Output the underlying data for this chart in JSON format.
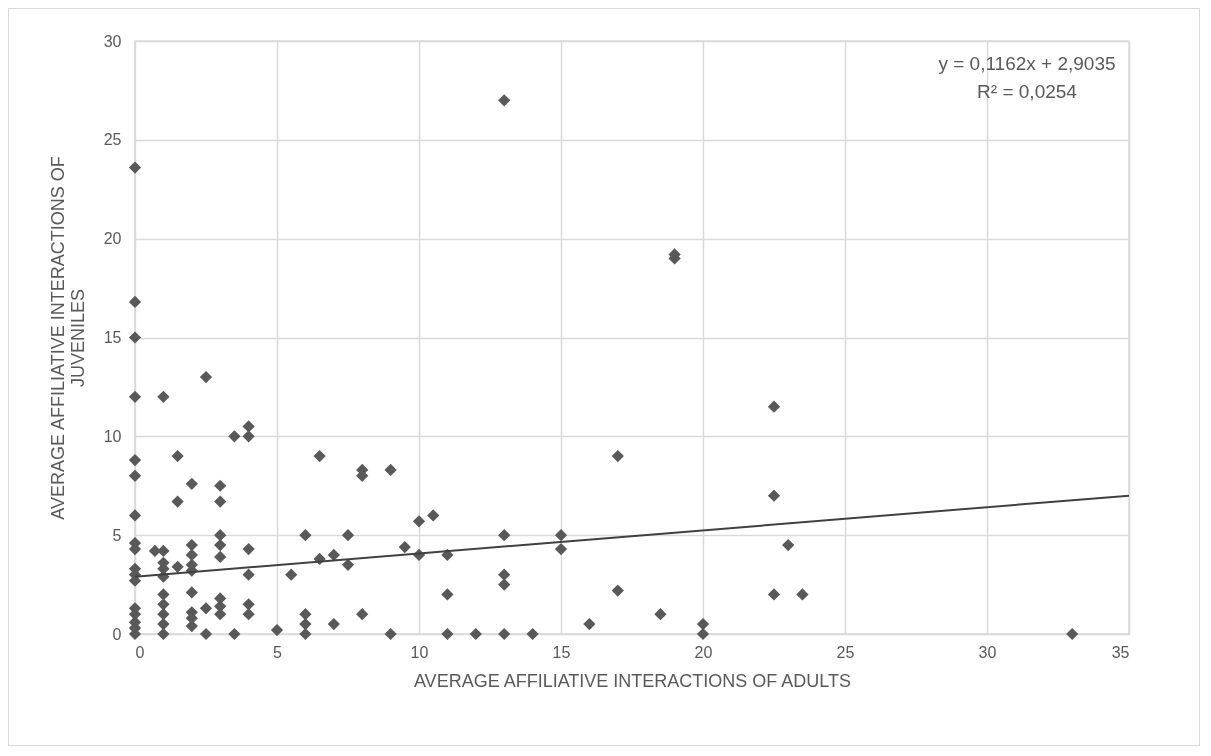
{
  "chart_data": {
    "type": "scatter",
    "xlabel": "AVERAGE AFFILIATIVE INTERACTIONS OF ADULTS",
    "ylabel": "AVERAGE AFFILIATIVE INTERACTIONS OF JUVENILES",
    "annotations": [
      "y = 0,1162x + 2,9035",
      "R² = 0,0254"
    ],
    "xlim": [
      0,
      35
    ],
    "xticks": [
      0,
      5,
      10,
      15,
      20,
      25,
      30,
      35
    ],
    "ylim": [
      0,
      30
    ],
    "yticks": [
      0,
      5,
      10,
      15,
      20,
      25,
      30
    ],
    "grid": true,
    "series": [
      {
        "color": "#595959",
        "marker": "diamond",
        "x": [
          0,
          0,
          0,
          0,
          0,
          0,
          0,
          0,
          0,
          0,
          0,
          0,
          0,
          0,
          0,
          0,
          0,
          0.7,
          1,
          1,
          1,
          1,
          1,
          1,
          1,
          1,
          1,
          1,
          1.5,
          1.5,
          1.5,
          2,
          2,
          2,
          2,
          2,
          2,
          2,
          2,
          2,
          2.5,
          2.5,
          2.5,
          3,
          3,
          3,
          3,
          3,
          3,
          3,
          3,
          3.5,
          3.5,
          4,
          4,
          4,
          4,
          4,
          4,
          5,
          5.5,
          6,
          6,
          6,
          6,
          6.5,
          6.5,
          7,
          7,
          7.5,
          7.5,
          8,
          8,
          8,
          9,
          9,
          9.5,
          10,
          10,
          10.5,
          11,
          11,
          11,
          12,
          13,
          13,
          13,
          13,
          13,
          14,
          15,
          15,
          16,
          17,
          17,
          18.5,
          19,
          19,
          20,
          20,
          22.5,
          22.5,
          22.5,
          23,
          23.5,
          33
        ],
        "values": [
          23.6,
          16.8,
          15,
          12,
          8.8,
          8,
          6,
          4.6,
          4.3,
          3.3,
          3,
          2.7,
          1.3,
          1,
          0.6,
          0.3,
          0,
          4.2,
          12,
          4.2,
          3.6,
          3.3,
          2.9,
          2,
          1.5,
          1,
          0.5,
          0,
          9,
          6.7,
          3.4,
          7.6,
          4.5,
          4,
          3.5,
          3.2,
          2.1,
          1.1,
          0.8,
          0.4,
          13,
          1.3,
          0,
          7.5,
          6.7,
          5,
          4.5,
          3.9,
          1.8,
          1.4,
          1,
          10,
          0,
          10.5,
          10,
          4.3,
          3,
          1.5,
          1,
          0.2,
          3,
          5,
          1,
          0.5,
          0,
          9,
          3.8,
          4,
          0.5,
          5,
          3.5,
          8.3,
          8,
          1,
          8.3,
          0,
          4.4,
          5.7,
          4,
          6,
          4,
          2,
          0,
          0,
          27,
          5,
          3,
          2.5,
          0,
          0,
          5,
          4.3,
          0.5,
          9,
          2.2,
          1,
          19.2,
          19,
          0.5,
          0,
          11.5,
          7,
          2,
          4.5,
          2,
          0
        ]
      },
      {
        "type": "line",
        "color": "#404040",
        "x": [
          0,
          35
        ],
        "values": [
          2.9,
          7.0
        ]
      }
    ]
  }
}
